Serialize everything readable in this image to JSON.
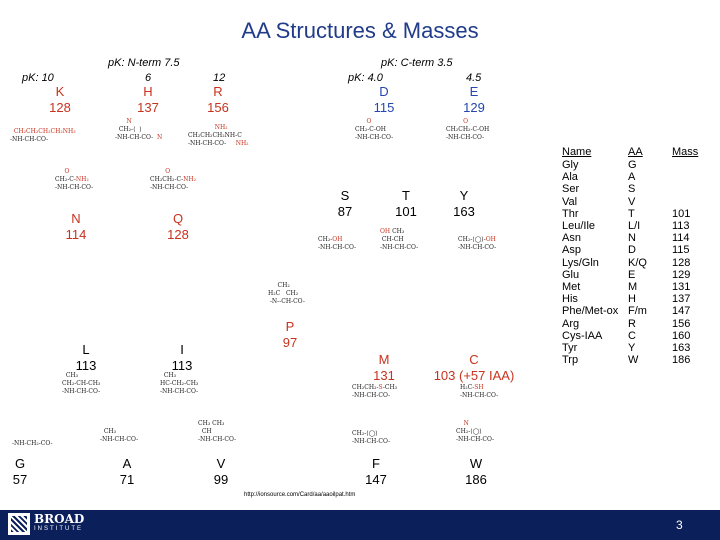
{
  "title": "AA Structures & Masses",
  "pk_n": "pK: N-term 7.5",
  "pk_c": "pK: C-term 3.5",
  "pk_left": "pK: 10",
  "pk_left2": "6",
  "pk_left3": "12",
  "pk_right": "pK: 4.0",
  "pk_right2": "4.5",
  "aa": {
    "K": {
      "code": "K",
      "mass": "128"
    },
    "H": {
      "code": "H",
      "mass": "137"
    },
    "R": {
      "code": "R",
      "mass": "156"
    },
    "D": {
      "code": "D",
      "mass": "115"
    },
    "E": {
      "code": "E",
      "mass": "129"
    },
    "N": {
      "code": "N",
      "mass": "114"
    },
    "Q": {
      "code": "Q",
      "mass": "128"
    },
    "S": {
      "code": "S",
      "mass": "87"
    },
    "T": {
      "code": "T",
      "mass": "101"
    },
    "Y": {
      "code": "Y",
      "mass": "163"
    },
    "P": {
      "code": "P",
      "mass": "97"
    },
    "L": {
      "code": "L",
      "mass": "113"
    },
    "I": {
      "code": "I",
      "mass": "113"
    },
    "M": {
      "code": "M",
      "mass": "131"
    },
    "C": {
      "code": "C",
      "mass": "103 (+57 IAA)"
    },
    "G": {
      "code": "G",
      "mass": "57"
    },
    "A": {
      "code": "A",
      "mass": "71"
    },
    "V": {
      "code": "V",
      "mass": "99"
    },
    "F": {
      "code": "F",
      "mass": "147"
    },
    "W": {
      "code": "W",
      "mass": "186"
    }
  },
  "table": {
    "headers": [
      "Name",
      "AA",
      "Mass"
    ],
    "rows": [
      [
        "Gly",
        "G",
        ""
      ],
      [
        "Ala",
        "A",
        ""
      ],
      [
        "Ser",
        "S",
        ""
      ],
      [
        "Val",
        "V",
        ""
      ],
      [
        "Thr",
        "T",
        "101"
      ],
      [
        "Leu/Ile",
        "L/I",
        "113"
      ],
      [
        "Asn",
        "N",
        "114"
      ],
      [
        "Asp",
        "D",
        "115"
      ],
      [
        "Lys/Gln",
        "K/Q",
        "128"
      ],
      [
        "Glu",
        "E",
        "129"
      ],
      [
        "Met",
        "M",
        "131"
      ],
      [
        "His",
        "H",
        "137"
      ],
      [
        "Phe/Met-ox",
        "F/m",
        "147"
      ],
      [
        "Arg",
        "R",
        "156"
      ],
      [
        "Cys-IAA",
        "C",
        "160"
      ],
      [
        "Tyr",
        "Y",
        "163"
      ],
      [
        "Trp",
        "W",
        "186"
      ]
    ]
  },
  "url": "http://ionsource.com/Card/aa/aaoilpat.htm",
  "logo": {
    "line1": "BROAD",
    "line2": "INSTITUTE"
  },
  "page_number": "3",
  "colors": {
    "title": "#1f3b8a",
    "basic": "#c8321e",
    "acidic": "#2545b0",
    "footer": "#0b1f5a"
  }
}
